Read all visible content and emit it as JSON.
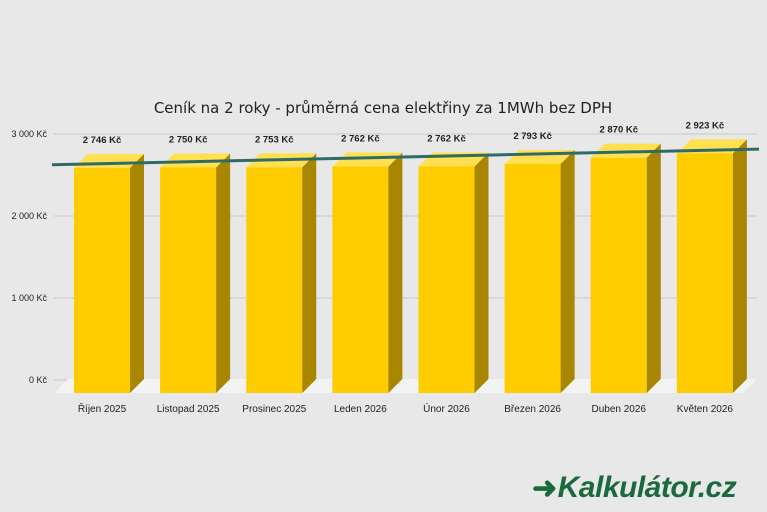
{
  "chart_data": {
    "type": "bar",
    "title": "Ceník na 2 roky - průměrná cena elektřiny za 1MWh bez DPH",
    "categories": [
      "Říjen 2025",
      "Listopad 2025",
      "Prosinec 2025",
      "Leden 2026",
      "Únor 2026",
      "Březen 2026",
      "Duben 2026",
      "Květen 2026"
    ],
    "values": [
      2746,
      2750,
      2753,
      2762,
      2762,
      2793,
      2870,
      2923
    ],
    "data_labels": [
      "2 746 Kč",
      "2 750 Kč",
      "2 753 Kč",
      "2 762 Kč",
      "2 762 Kč",
      "2 793 Kč",
      "2 870 Kč",
      "2 923 Kč"
    ],
    "yticks": [
      0,
      1000,
      2000,
      3000
    ],
    "ytick_labels": [
      "0 Kč",
      "1 000 Kč",
      "2 000 Kč",
      "3 000 Kč"
    ],
    "ylim": [
      0,
      3000
    ],
    "xlabel": "",
    "ylabel": "",
    "trendline": true,
    "grid": true,
    "style": "3d-bar",
    "colors": {
      "bar_front": "#ffcc00",
      "bar_side": "#a88600",
      "bar_top": "#ffe050",
      "trend": "#2f6c68",
      "grid": "#c8c8c8",
      "floor": "#f3f3f3"
    }
  },
  "brand": {
    "icon": "arrow-right-icon",
    "text": "Kalkulátor.cz"
  }
}
